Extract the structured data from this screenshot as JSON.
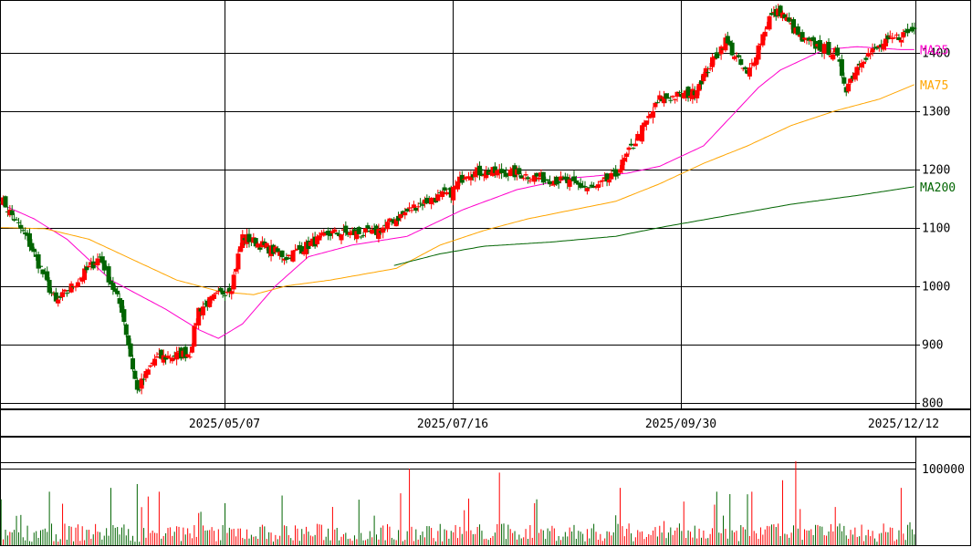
{
  "chart_data": [
    {
      "type": "candlestick",
      "y_axis": {
        "ylim": [
          790,
          1490
        ],
        "ticks": [
          800,
          900,
          1000,
          1100,
          1200,
          1300,
          1400
        ]
      },
      "x_labels": [
        "2025/05/07",
        "2025/07/16",
        "2025/09/30",
        "2025/12/12"
      ],
      "grid": true,
      "colors": {
        "up": "#ff0000",
        "down": "#006400",
        "ma25": "#ff00cc",
        "ma75": "#ffa500",
        "ma200": "#006400"
      },
      "series": [
        {
          "name": "MA25",
          "color": "#ff00cc",
          "anchors": [
            [
              0,
              1140
            ],
            [
              15,
              1115
            ],
            [
              30,
              1080
            ],
            [
              50,
              1010
            ],
            [
              75,
              960
            ],
            [
              90,
              925
            ],
            [
              99,
              910
            ],
            [
              110,
              935
            ],
            [
              125,
              1000
            ],
            [
              140,
              1050
            ],
            [
              160,
              1070
            ],
            [
              185,
              1085
            ],
            [
              210,
              1130
            ],
            [
              235,
              1165
            ],
            [
              260,
              1185
            ],
            [
              285,
              1193
            ],
            [
              300,
              1205
            ],
            [
              320,
              1240
            ],
            [
              345,
              1340
            ],
            [
              355,
              1370
            ],
            [
              375,
              1405
            ],
            [
              390,
              1410
            ],
            [
              410,
              1405
            ],
            [
              416,
              1405
            ]
          ]
        },
        {
          "name": "MA75",
          "color": "#ffa500",
          "anchors": [
            [
              0,
              1100
            ],
            [
              20,
              1098
            ],
            [
              40,
              1080
            ],
            [
              60,
              1045
            ],
            [
              80,
              1010
            ],
            [
              100,
              990
            ],
            [
              115,
              985
            ],
            [
              130,
              1000
            ],
            [
              150,
              1010
            ],
            [
              165,
              1020
            ],
            [
              180,
              1030
            ],
            [
              200,
              1070
            ],
            [
              220,
              1095
            ],
            [
              240,
              1115
            ],
            [
              260,
              1130
            ],
            [
              280,
              1145
            ],
            [
              300,
              1175
            ],
            [
              320,
              1210
            ],
            [
              340,
              1240
            ],
            [
              360,
              1275
            ],
            [
              380,
              1300
            ],
            [
              400,
              1320
            ],
            [
              416,
              1345
            ]
          ]
        },
        {
          "name": "MA200",
          "color": "#006400",
          "anchors": [
            [
              179,
              1035
            ],
            [
              200,
              1055
            ],
            [
              220,
              1068
            ],
            [
              250,
              1075
            ],
            [
              280,
              1085
            ],
            [
              300,
              1100
            ],
            [
              330,
              1120
            ],
            [
              360,
              1140
            ],
            [
              390,
              1155
            ],
            [
              416,
              1170
            ]
          ]
        }
      ],
      "candles": {
        "count": 417,
        "start": 1150,
        "seed": 7,
        "waypoints": [
          [
            0,
            1150
          ],
          [
            12,
            1080
          ],
          [
            25,
            970
          ],
          [
            45,
            1050
          ],
          [
            55,
            960
          ],
          [
            62,
            820
          ],
          [
            70,
            875
          ],
          [
            86,
            885
          ],
          [
            90,
            960
          ],
          [
            105,
            1000
          ],
          [
            110,
            1085
          ],
          [
            130,
            1050
          ],
          [
            150,
            1090
          ],
          [
            170,
            1090
          ],
          [
            190,
            1140
          ],
          [
            205,
            1160
          ],
          [
            212,
            1195
          ],
          [
            230,
            1195
          ],
          [
            255,
            1180
          ],
          [
            270,
            1165
          ],
          [
            280,
            1190
          ],
          [
            300,
            1320
          ],
          [
            315,
            1330
          ],
          [
            330,
            1420
          ],
          [
            340,
            1360
          ],
          [
            350,
            1460
          ],
          [
            355,
            1470
          ],
          [
            365,
            1420
          ],
          [
            380,
            1400
          ],
          [
            385,
            1340
          ],
          [
            392,
            1390
          ],
          [
            405,
            1420
          ],
          [
            416,
            1440
          ]
        ]
      }
    },
    {
      "type": "bar",
      "y_axis": {
        "ticks": [
          100000
        ]
      },
      "series": [
        {
          "colors_by_candle": true
        }
      ],
      "volume": {
        "base": 15000,
        "spikes": [
          [
            0,
            60000
          ],
          [
            22,
            70000
          ],
          [
            50,
            75000
          ],
          [
            62,
            80000
          ],
          [
            72,
            70000
          ],
          [
            102,
            55000
          ],
          [
            128,
            65000
          ],
          [
            186,
            100000
          ],
          [
            227,
            95000
          ],
          [
            244,
            60000
          ],
          [
            282,
            75000
          ],
          [
            326,
            70000
          ],
          [
            342,
            70000
          ],
          [
            356,
            85000
          ],
          [
            362,
            110000
          ],
          [
            380,
            50000
          ],
          [
            410,
            75000
          ],
          [
            414,
            30000
          ]
        ]
      }
    }
  ]
}
